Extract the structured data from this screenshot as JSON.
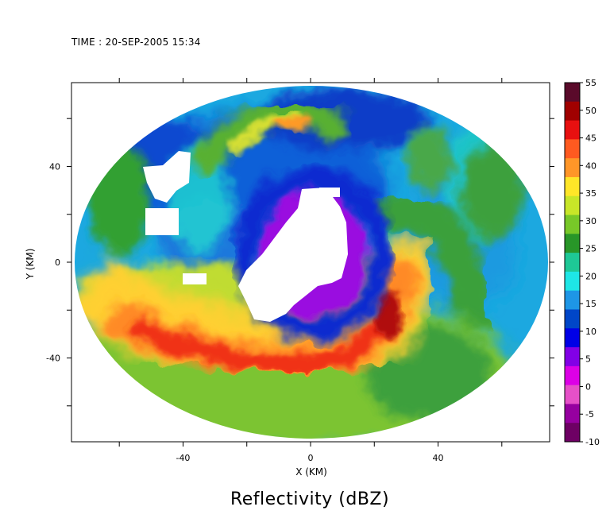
{
  "header": {
    "time_text": "TIME : 20-SEP-2005 15:34"
  },
  "chart_data": {
    "type": "heatmap",
    "title": "Reflectivity (dBZ)",
    "xlabel": "X (KM)",
    "ylabel": "Y (KM)",
    "xlim": [
      -75,
      75
    ],
    "ylim": [
      -75,
      75
    ],
    "x_ticks": [
      -40,
      0,
      40
    ],
    "y_ticks": [
      -40,
      0,
      40
    ],
    "radar_range_km": 74,
    "colorbar": {
      "label_values": [
        "55",
        "50",
        "45",
        "40",
        "35",
        "30",
        "25",
        "20",
        "15",
        "10",
        "5",
        "0",
        "-5",
        "-10"
      ],
      "range": [
        -10,
        55
      ],
      "colors": [
        "#5a0a2a",
        "#a00000",
        "#e81010",
        "#ff5a20",
        "#ff9628",
        "#ffe628",
        "#c8e628",
        "#78c828",
        "#289628",
        "#1ec896",
        "#1ee6e6",
        "#1e96e6",
        "#0046c8",
        "#0000e6",
        "#8200e6",
        "#dc00e6",
        "#e650c8",
        "#9600a0",
        "#6e0064"
      ]
    },
    "features": [
      {
        "name": "eye",
        "x": 5,
        "y": 15,
        "radius_km": 20,
        "value": null
      },
      {
        "name": "eyewall-band",
        "shape": "spiral",
        "max_value": 50
      },
      {
        "name": "northern-band",
        "x": -10,
        "y": 55,
        "value": 40
      }
    ]
  }
}
